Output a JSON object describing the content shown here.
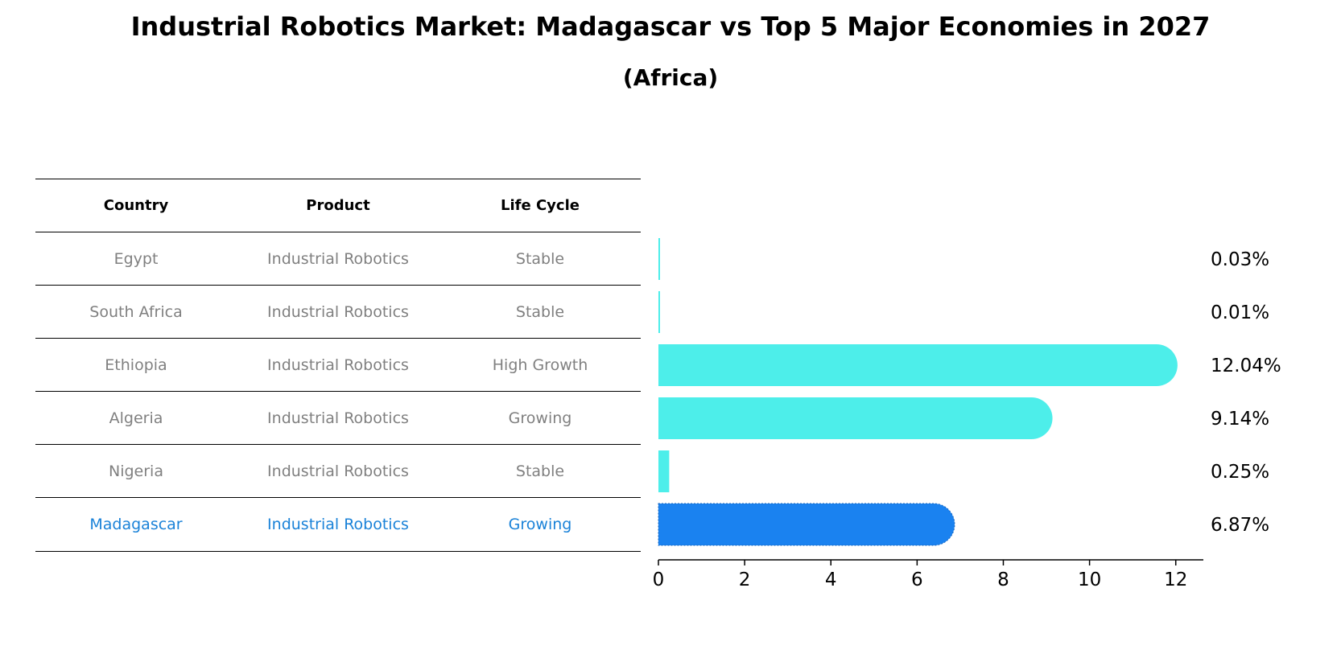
{
  "header": {
    "title": "Industrial Robotics Market: Madagascar vs Top 5 Major Economies in 2027",
    "subtitle": "(Africa)"
  },
  "table": {
    "columns": [
      "Country",
      "Product",
      "Life Cycle"
    ],
    "rows": [
      [
        "Egypt",
        "Industrial Robotics",
        "Stable"
      ],
      [
        "South Africa",
        "Industrial Robotics",
        "Stable"
      ],
      [
        "Ethiopia",
        "Industrial Robotics",
        "High Growth"
      ],
      [
        "Algeria",
        "Industrial Robotics",
        "Growing"
      ],
      [
        "Nigeria",
        "Industrial Robotics",
        "Stable"
      ],
      [
        "Madagascar",
        "Industrial Robotics",
        "Growing"
      ]
    ]
  },
  "colors": {
    "bar": "#4deeea",
    "highlight_bar": "#1a82f0",
    "highlight_text": "#1a82d8",
    "row_text": "#808080"
  },
  "chart_data": {
    "type": "bar",
    "orientation": "horizontal",
    "categories": [
      "Egypt",
      "South Africa",
      "Ethiopia",
      "Algeria",
      "Nigeria",
      "Madagascar"
    ],
    "values": [
      0.03,
      0.01,
      12.04,
      9.14,
      0.25,
      6.87
    ],
    "value_labels": [
      "0.03%",
      "0.01%",
      "12.04%",
      "9.14%",
      "0.25%",
      "6.87%"
    ],
    "highlight": "Madagascar",
    "xlim": [
      0,
      12.64
    ],
    "xticks": [
      0,
      2,
      4,
      6,
      8,
      10,
      12
    ],
    "xlabel": "",
    "ylabel": "",
    "grid": false
  }
}
